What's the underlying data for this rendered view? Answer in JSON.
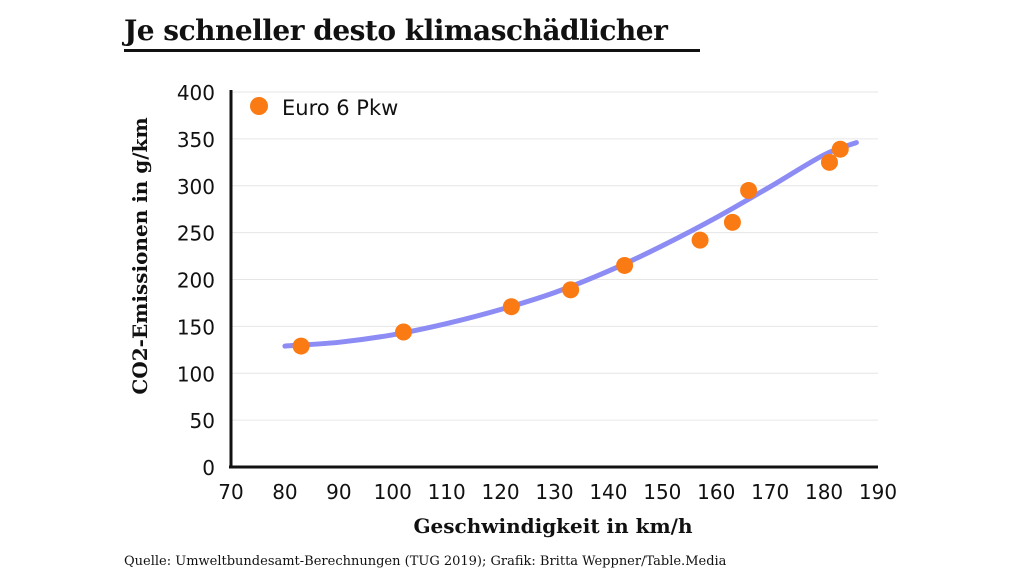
{
  "title": "Je schneller desto klimaschädlicher",
  "source": "Quelle: Umweltbundesamt-Berechnungen (TUG 2019); Grafik: Britta Weppner/Table.Media",
  "colors": {
    "points": "#fa7a14",
    "trend": "#8c8cf4",
    "axis": "#111111",
    "grid": "#e6e6e6"
  },
  "chart_data": {
    "type": "scatter",
    "xlabel": "Geschwindigkeit in km/h",
    "ylabel": "CO2-Emissionen in g/km",
    "xlim": [
      70,
      190
    ],
    "ylim": [
      0,
      400
    ],
    "xticks": [
      "70",
      "80",
      "90",
      "100",
      "110",
      "120",
      "130",
      "140",
      "150",
      "160",
      "170",
      "180",
      "190"
    ],
    "yticks": [
      "0",
      "50",
      "100",
      "150",
      "200",
      "250",
      "300",
      "350",
      "400"
    ],
    "grid": true,
    "legend": {
      "position": "top-left",
      "label": "Euro 6 Pkw"
    },
    "series": [
      {
        "name": "Euro 6 Pkw",
        "x": [
          83,
          102,
          122,
          133,
          143,
          157,
          163,
          166,
          181,
          183
        ],
        "y": [
          129,
          144,
          171,
          189,
          215,
          242,
          261,
          295,
          325,
          339
        ]
      }
    ],
    "trendline": {
      "x": [
        80,
        90,
        100,
        110,
        120,
        130,
        140,
        150,
        160,
        170,
        180,
        186
      ],
      "y": [
        129,
        133,
        141,
        153,
        168,
        186,
        209,
        236,
        266,
        299,
        333,
        346
      ]
    }
  }
}
